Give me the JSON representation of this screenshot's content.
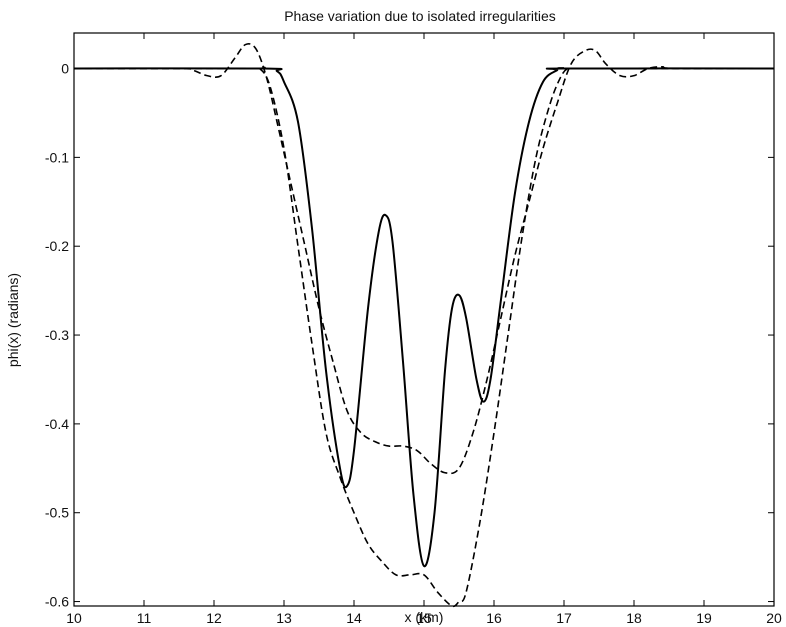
{
  "chart_data": {
    "type": "line",
    "title": "Phase variation due to isolated irregularities",
    "xlabel": "x (km)",
    "ylabel": "phi(x) (radians)",
    "xlim": [
      10,
      20
    ],
    "ylim": [
      -0.605,
      0.04
    ],
    "xticks": [
      10,
      11,
      12,
      13,
      14,
      15,
      16,
      17,
      18,
      19,
      20
    ],
    "xtick_labels": [
      "10",
      "11",
      "12",
      "13",
      "14",
      "15",
      "16",
      "17",
      "18",
      "19",
      "20"
    ],
    "yticks": [
      0,
      -0.1,
      -0.2,
      -0.3,
      -0.4,
      -0.5,
      -0.6
    ],
    "ytick_labels": [
      "0",
      "-0.1",
      "-0.2",
      "-0.3",
      "-0.4",
      "-0.5",
      "-0.6"
    ],
    "grid": false,
    "series": [
      {
        "style": "solid",
        "x": [
          10,
          12.7,
          12.9,
          13.0,
          13.2,
          13.4,
          13.6,
          13.8,
          13.9,
          14.0,
          14.2,
          14.35,
          14.45,
          14.55,
          14.7,
          14.85,
          15.0,
          15.15,
          15.3,
          15.4,
          15.5,
          15.6,
          15.75,
          15.85,
          15.95,
          16.1,
          16.3,
          16.5,
          16.7,
          16.9,
          17.0,
          20
        ],
        "y": [
          0,
          0,
          -0.003,
          -0.015,
          -0.06,
          -0.18,
          -0.34,
          -0.45,
          -0.47,
          -0.43,
          -0.27,
          -0.185,
          -0.165,
          -0.195,
          -0.33,
          -0.48,
          -0.56,
          -0.5,
          -0.34,
          -0.27,
          -0.255,
          -0.28,
          -0.35,
          -0.375,
          -0.35,
          -0.26,
          -0.14,
          -0.06,
          -0.015,
          -0.002,
          0,
          0
        ]
      },
      {
        "style": "dashed",
        "x": [
          10,
          11.5,
          11.7,
          11.9,
          12.1,
          12.3,
          12.45,
          12.6,
          12.75,
          12.9,
          13.1,
          13.3,
          13.5,
          13.7,
          13.9,
          14.1,
          14.3,
          14.5,
          14.7,
          14.9,
          15.1,
          15.3,
          15.5,
          15.7,
          15.9,
          16.1,
          16.3,
          16.5,
          16.7,
          16.9,
          17.1,
          17.3,
          17.45,
          17.6,
          17.8,
          18.0,
          18.2,
          18.4,
          18.6,
          20
        ],
        "y": [
          0,
          0,
          -0.002,
          -0.008,
          -0.008,
          0.012,
          0.027,
          0.022,
          -0.01,
          -0.06,
          -0.13,
          -0.2,
          -0.27,
          -0.33,
          -0.385,
          -0.41,
          -0.42,
          -0.425,
          -0.425,
          -0.43,
          -0.445,
          -0.455,
          -0.45,
          -0.41,
          -0.35,
          -0.28,
          -0.21,
          -0.15,
          -0.09,
          -0.04,
          0.005,
          0.02,
          0.02,
          0.005,
          -0.008,
          -0.008,
          0,
          0.002,
          0,
          0
        ]
      },
      {
        "style": "dashed",
        "x": [
          10,
          12.5,
          12.65,
          12.8,
          13.0,
          13.2,
          13.4,
          13.6,
          13.8,
          14.0,
          14.2,
          14.4,
          14.6,
          14.8,
          15.0,
          15.2,
          15.4,
          15.5,
          15.6,
          15.8,
          16.0,
          16.2,
          16.4,
          16.6,
          16.8,
          16.95,
          17.05,
          17.15,
          20
        ],
        "y": [
          0,
          0,
          0,
          -0.02,
          -0.09,
          -0.2,
          -0.31,
          -0.41,
          -0.46,
          -0.5,
          -0.535,
          -0.555,
          -0.57,
          -0.57,
          -0.57,
          -0.59,
          -0.605,
          -0.6,
          -0.59,
          -0.51,
          -0.41,
          -0.3,
          -0.19,
          -0.1,
          -0.04,
          -0.01,
          0,
          0,
          0
        ]
      }
    ]
  }
}
